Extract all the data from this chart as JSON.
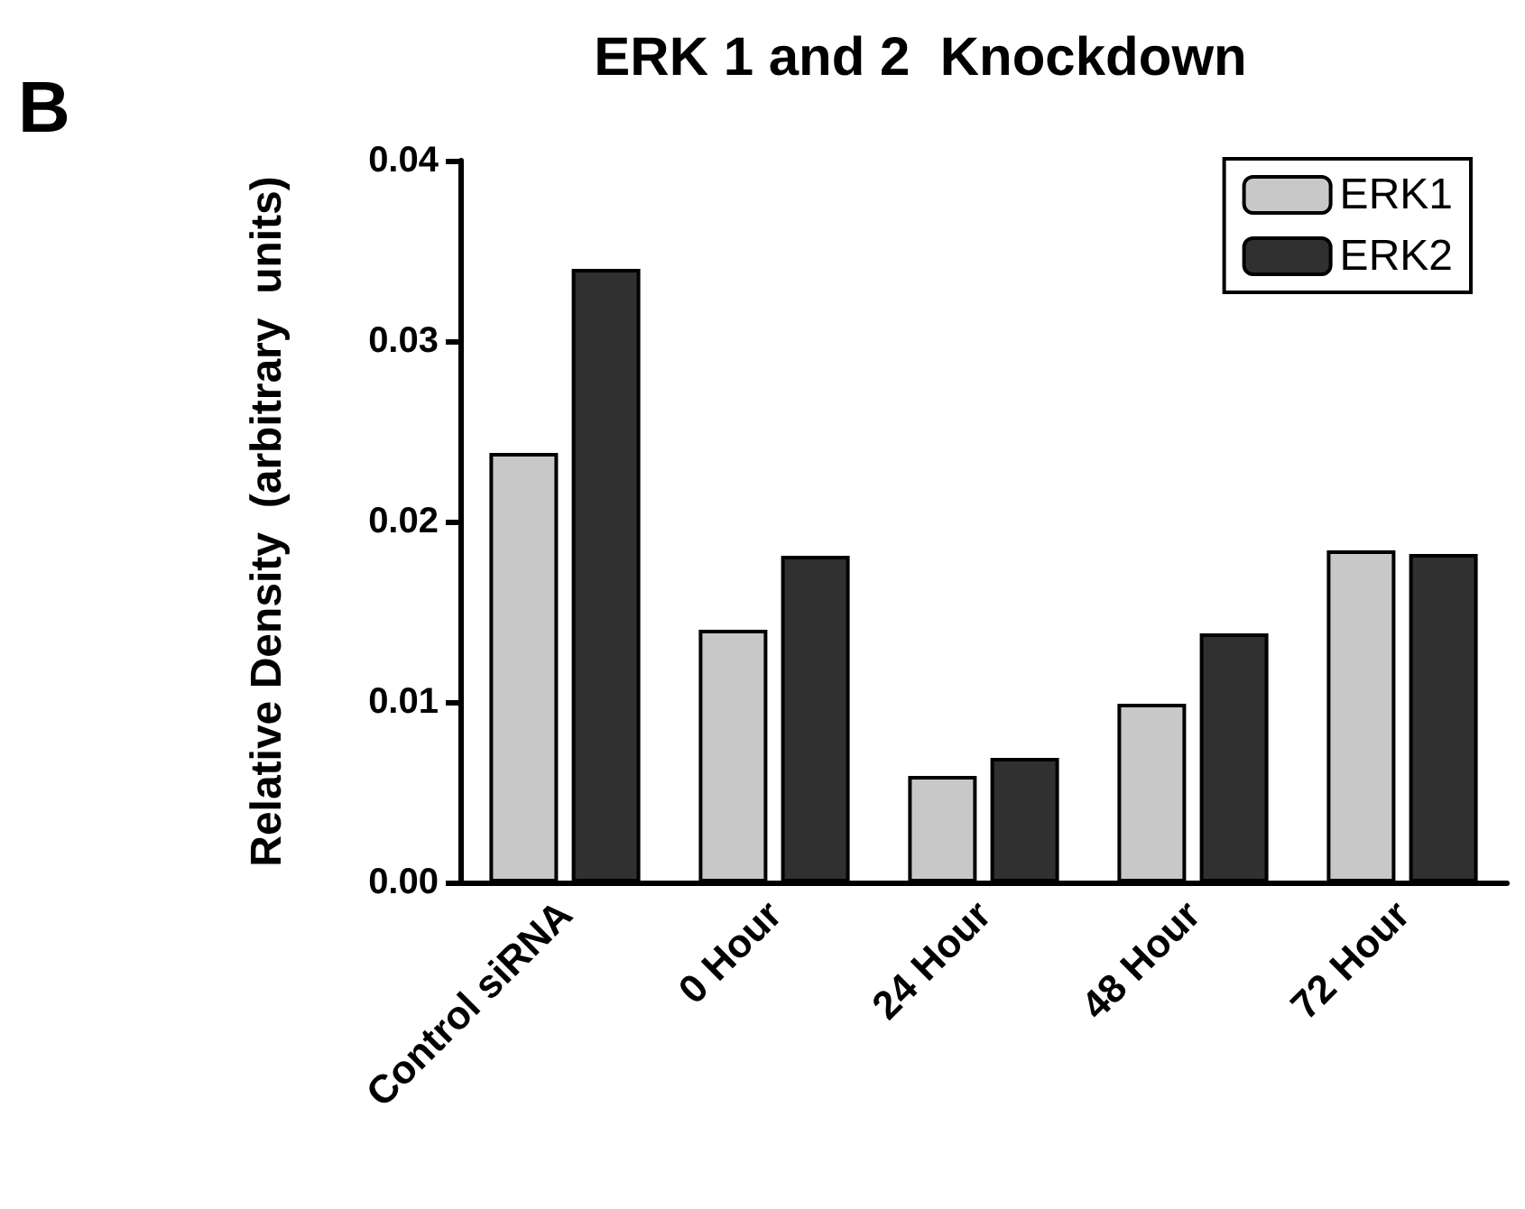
{
  "chart_data": {
    "type": "bar",
    "title": "ERK 1 and 2  Knockdown",
    "ylabel": "Relative Density  (arbitrary  units)",
    "annotations": [
      "B"
    ],
    "categories": [
      "Control siRNA",
      "0 Hour",
      "24 Hour",
      "48 Hour",
      "72 Hour"
    ],
    "series": [
      {
        "name": "ERK1",
        "color": "#c8c8c8",
        "values": [
          0.0238,
          0.014,
          0.0059,
          0.0099,
          0.0184
        ]
      },
      {
        "name": "ERK2",
        "color": "#303030",
        "values": [
          0.034,
          0.0181,
          0.0069,
          0.0138,
          0.0182
        ]
      }
    ],
    "ylim": [
      0,
      0.04
    ],
    "yticks": [
      {
        "value": 0,
        "label": "0.00"
      },
      {
        "value": 0.01,
        "label": "0.01"
      },
      {
        "value": 0.02,
        "label": "0.02"
      },
      {
        "value": 0.03,
        "label": "0.03"
      },
      {
        "value": 0.04,
        "label": "0.04"
      }
    ],
    "grid": false,
    "legend": "top right"
  }
}
